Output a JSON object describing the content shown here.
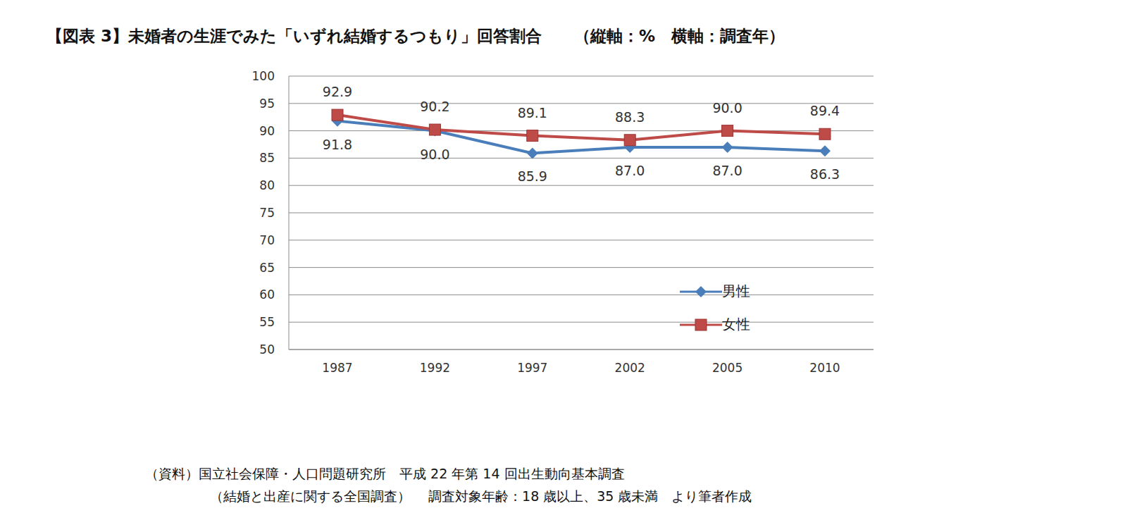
{
  "chart_data": {
    "type": "line",
    "title": "【図表 3】未婚者の生涯でみた「いずれ結婚するつもり」回答割合　　（縦軸：%　横軸：調査年）",
    "notes": [
      "（資料）国立社会保障・人口問題研究所　平成 22 年第 14 回出生動向基本調査",
      "（結婚と出産に関する全国調査）　 調査対象年齢：18 歳以上、35 歳未満　より筆者作成"
    ],
    "categories": [
      "1987",
      "1992",
      "1997",
      "2002",
      "2005",
      "2010"
    ],
    "series": [
      {
        "name": "男性",
        "color": "#4a7ebb",
        "marker": "diamond",
        "values": [
          91.8,
          90.0,
          85.9,
          87.0,
          87.0,
          86.3
        ],
        "value_labels": [
          "91.8",
          "90.0",
          "85.9",
          "87.0",
          "87.0",
          "86.3"
        ]
      },
      {
        "name": "女性",
        "color": "#be4b48",
        "marker": "square",
        "values": [
          92.9,
          90.2,
          89.1,
          88.3,
          90.0,
          89.4
        ],
        "value_labels": [
          "92.9",
          "90.2",
          "89.1",
          "88.3",
          "90.0",
          "89.4"
        ]
      }
    ],
    "ylim": [
      50,
      100
    ],
    "yticks": [
      50,
      55,
      60,
      65,
      70,
      75,
      80,
      85,
      90,
      95,
      100
    ],
    "grid": true,
    "legend": "right",
    "data_labels": true
  }
}
